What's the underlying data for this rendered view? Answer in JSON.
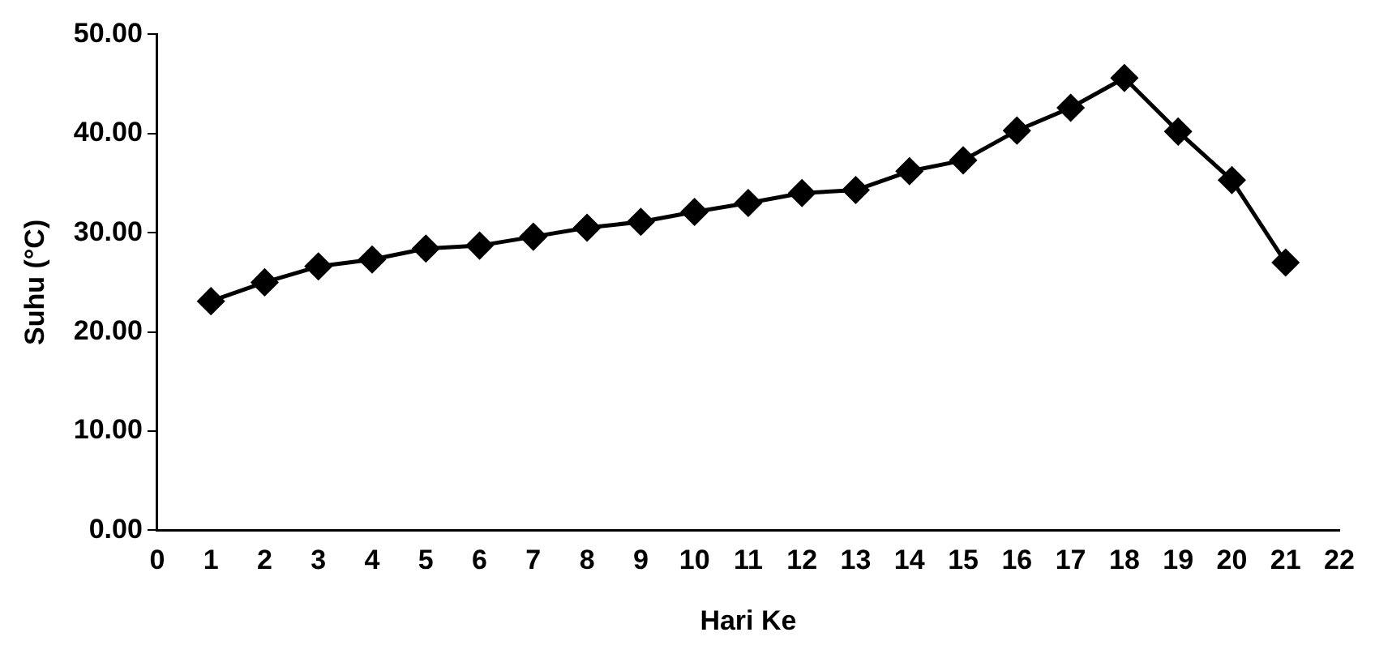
{
  "chart_data": {
    "type": "line",
    "xlabel": "Hari Ke",
    "ylabel": "Suhu (°C)",
    "x": [
      1,
      2,
      3,
      4,
      5,
      6,
      7,
      8,
      9,
      10,
      11,
      12,
      13,
      14,
      15,
      16,
      17,
      18,
      19,
      20,
      21
    ],
    "series": [
      {
        "color": "#000000",
        "values": [
          23.1,
          25.0,
          26.6,
          27.3,
          28.4,
          28.7,
          29.6,
          30.5,
          31.1,
          32.1,
          33.0,
          34.0,
          34.3,
          36.2,
          37.3,
          40.3,
          42.6,
          45.6,
          40.2,
          35.3,
          27.0
        ]
      }
    ],
    "xlim": [
      0,
      22
    ],
    "xticks": [
      0,
      1,
      2,
      3,
      4,
      5,
      6,
      7,
      8,
      9,
      10,
      11,
      12,
      13,
      14,
      15,
      16,
      17,
      18,
      19,
      20,
      21,
      22
    ],
    "ylim": [
      0,
      50
    ],
    "yticks": [
      {
        "value": 0,
        "label": "0.00"
      },
      {
        "value": 10,
        "label": "10.00"
      },
      {
        "value": 20,
        "label": "20.00"
      },
      {
        "value": 30,
        "label": "30.00"
      },
      {
        "value": 40,
        "label": "40.00"
      },
      {
        "value": 50,
        "label": "50.00"
      }
    ],
    "grid": false,
    "legend": false,
    "marker": "diamond",
    "line_style": "solid"
  }
}
